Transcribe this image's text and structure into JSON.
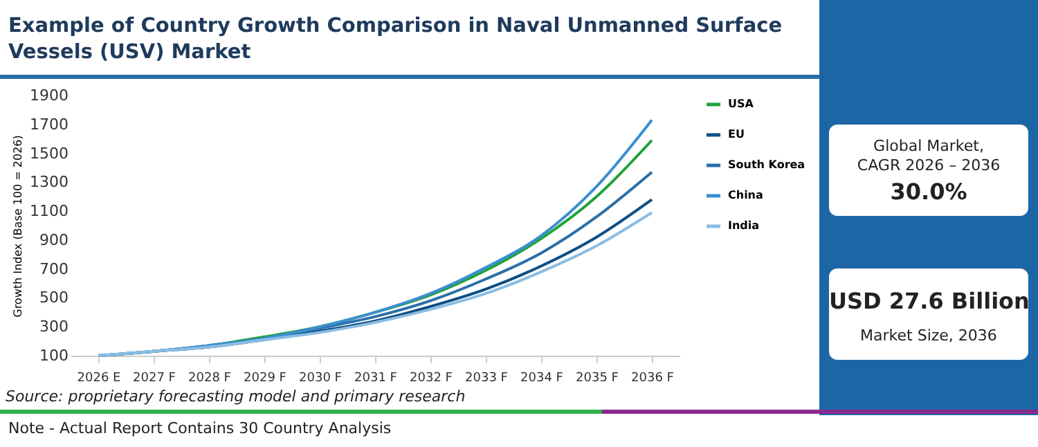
{
  "chart_data": [
    {
      "type": "line",
      "title": "Example of Country Growth Comparison in Naval Unmanned Surface Vessels (USV) Market",
      "ylabel": "Growth Index (Base 100 = 2026)",
      "categories": [
        "2026 E",
        "2027 F",
        "2028 F",
        "2029 F",
        "2030 F",
        "2031 F",
        "2032 F",
        "2033 F",
        "2034 F",
        "2035 F",
        "2036 F"
      ],
      "series": [
        {
          "name": "USA",
          "color": "#1fa33a",
          "values": [
            100,
            130,
            170,
            230,
            300,
            400,
            520,
            690,
            910,
            1200,
            1590
          ]
        },
        {
          "name": "EU",
          "color": "#0d4f86",
          "values": [
            100,
            130,
            160,
            210,
            270,
            340,
            440,
            560,
            720,
            920,
            1180
          ]
        },
        {
          "name": "South Korea",
          "color": "#2a6fa8",
          "values": [
            100,
            130,
            170,
            220,
            290,
            370,
            480,
            630,
            810,
            1060,
            1370
          ]
        },
        {
          "name": "China",
          "color": "#3b8fd0",
          "values": [
            100,
            130,
            170,
            220,
            300,
            400,
            530,
            710,
            930,
            1270,
            1730
          ]
        },
        {
          "name": "India",
          "color": "#8bbde3",
          "values": [
            100,
            130,
            160,
            210,
            260,
            330,
            420,
            530,
            680,
            860,
            1090
          ]
        }
      ],
      "ylim": [
        100,
        1900
      ],
      "yticks": [
        100,
        300,
        500,
        700,
        900,
        1100,
        1300,
        1500,
        1700,
        1900
      ],
      "grid": false,
      "legend": "right",
      "line_style": "solid",
      "marker": "none",
      "annotations": [
        "Source: proprietary forecasting model and primary research",
        "Note - Actual Report Contains 30 Country Analysis"
      ]
    },
    {
      "type": "other",
      "annotations": [
        "Global Market,",
        "CAGR 2026 – 2036",
        "30.0%",
        "USD 27.6 Billion",
        "Market Size, 2036"
      ]
    }
  ]
}
